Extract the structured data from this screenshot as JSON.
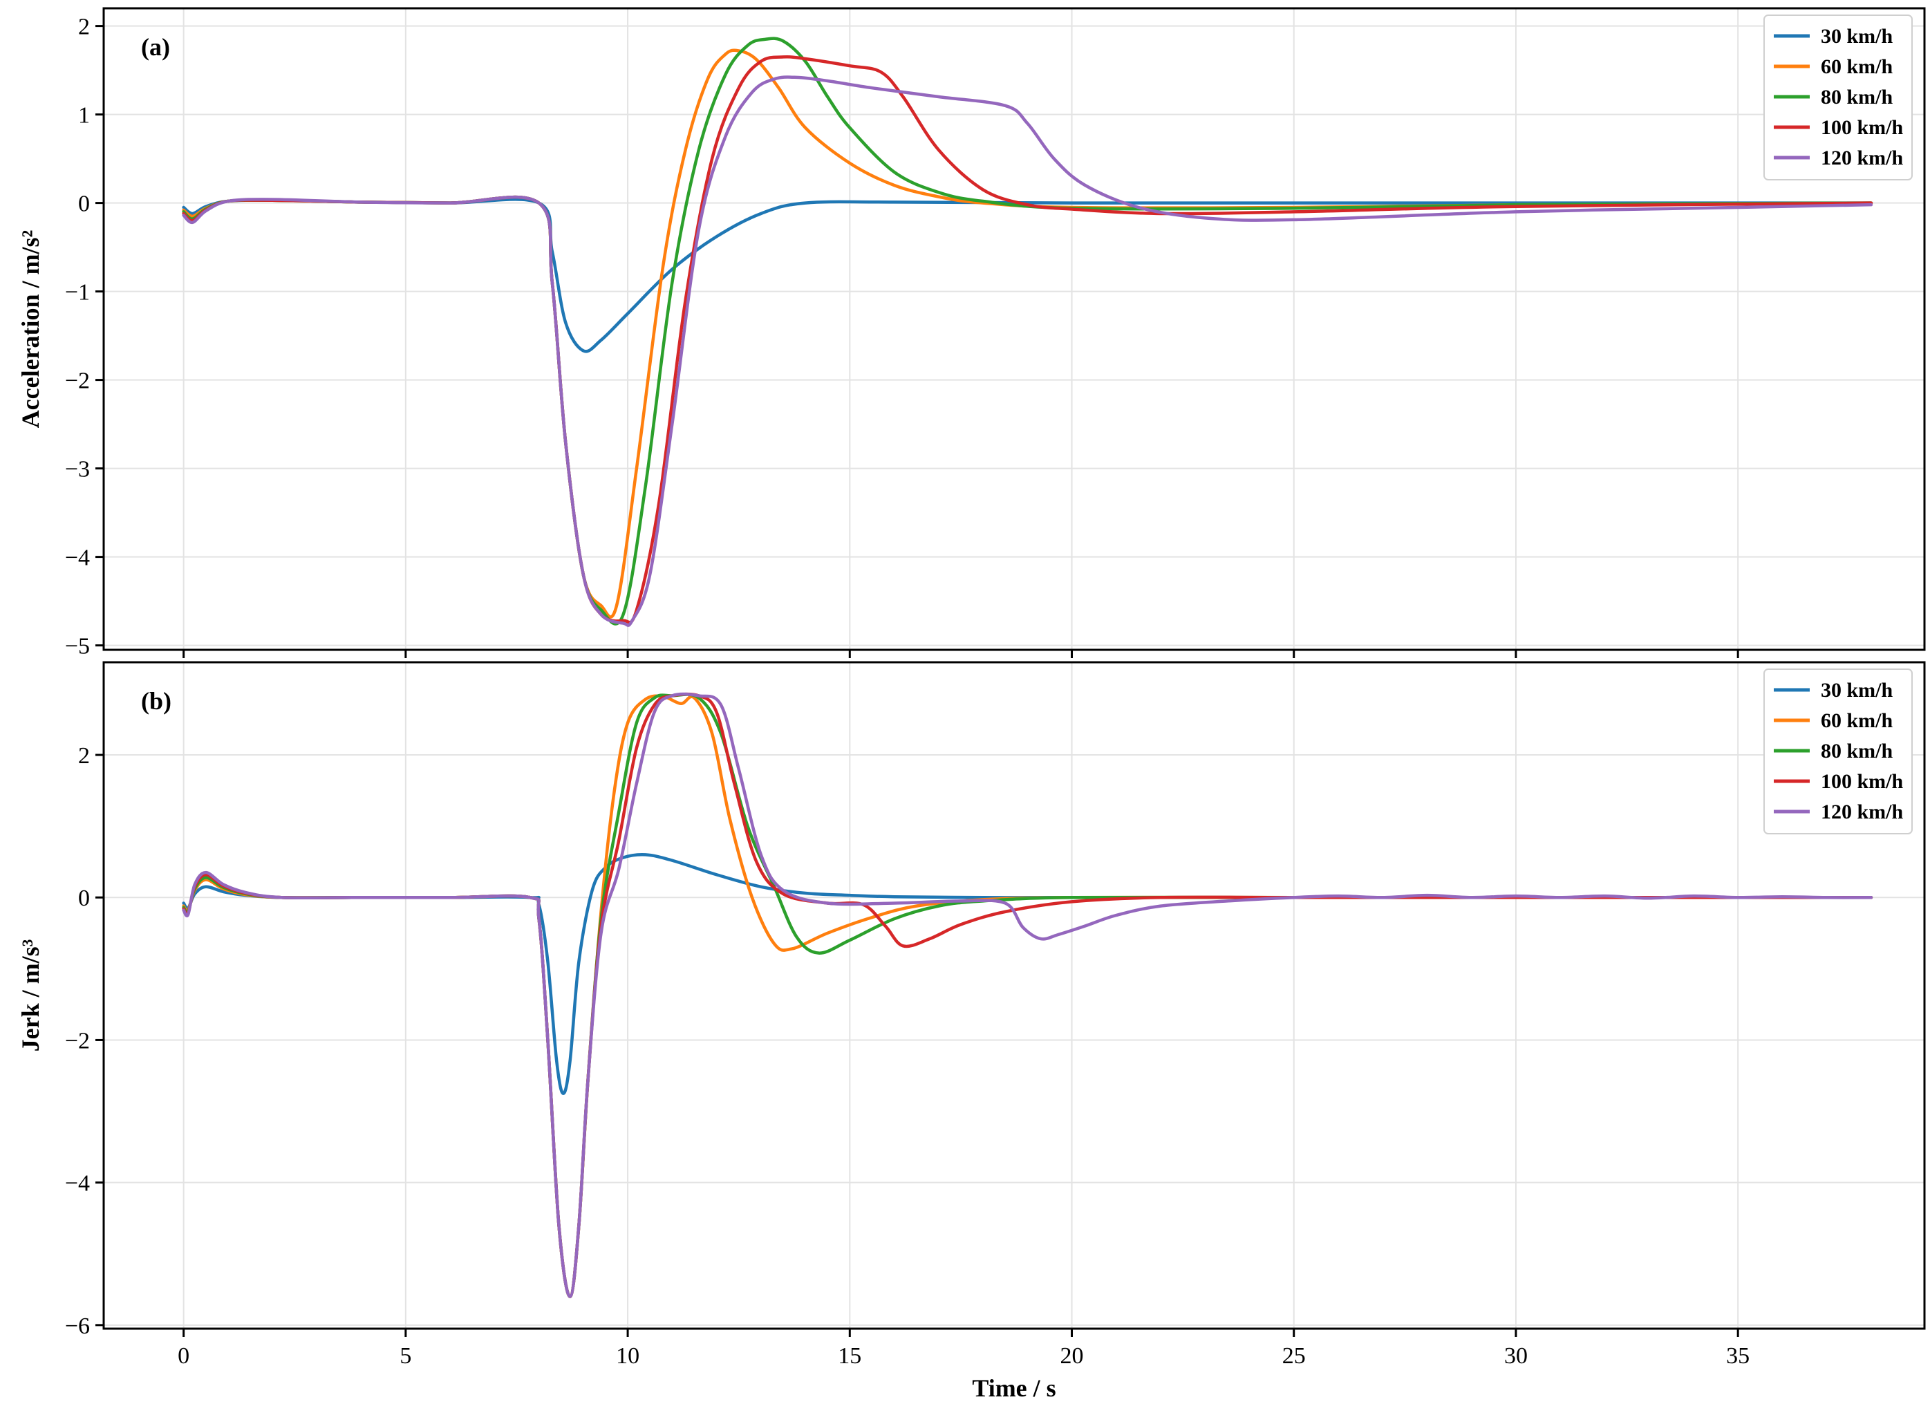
{
  "chart_data": [
    {
      "type": "line",
      "panel_label": "(a)",
      "xlabel": "",
      "ylabel": "Acceleration / m/s²",
      "xlim": [
        -1.8,
        39.2
      ],
      "ylim": [
        -5.05,
        2.2
      ],
      "xticks": [
        0,
        5,
        10,
        15,
        20,
        25,
        30,
        35
      ],
      "yticks": [
        -5,
        -4,
        -3,
        -2,
        -1,
        0,
        1,
        2
      ],
      "xtick_labels": [
        "",
        "",
        "",
        "",
        "",
        "",
        "",
        ""
      ],
      "ytick_labels": [
        "−5",
        "−4",
        "−3",
        "−2",
        "−1",
        "0",
        "1",
        "2"
      ],
      "grid": true,
      "legend_position": "top-right",
      "series": [
        {
          "name": "30 km/h",
          "color": "#1f77b4",
          "x": [
            0,
            0.2,
            0.5,
            1,
            2,
            4,
            6,
            8,
            8.3,
            8.6,
            9,
            9.4,
            10,
            11,
            12,
            13,
            14,
            16,
            20,
            25,
            30,
            38
          ],
          "y": [
            -0.05,
            -0.12,
            -0.04,
            0.02,
            0.03,
            0.01,
            0.0,
            0.0,
            -0.55,
            -1.35,
            -1.67,
            -1.55,
            -1.25,
            -0.75,
            -0.38,
            -0.12,
            0.0,
            0.01,
            0.0,
            0.0,
            0.0,
            0.0
          ]
        },
        {
          "name": "60 km/h",
          "color": "#ff7f0e",
          "x": [
            0,
            0.2,
            0.5,
            1,
            2,
            4,
            6,
            8,
            8.3,
            8.6,
            9,
            9.4,
            9.75,
            10.2,
            10.8,
            11.3,
            11.8,
            12.2,
            12.5,
            12.9,
            13.4,
            14,
            15,
            16,
            17,
            18,
            20,
            25,
            30,
            38
          ],
          "y": [
            -0.08,
            -0.15,
            -0.06,
            0.02,
            0.03,
            0.01,
            0.0,
            0.0,
            -0.9,
            -2.7,
            -4.2,
            -4.55,
            -4.55,
            -3.0,
            -0.7,
            0.6,
            1.4,
            1.68,
            1.72,
            1.62,
            1.3,
            0.85,
            0.45,
            0.2,
            0.07,
            0.0,
            -0.05,
            -0.05,
            -0.02,
            0.0
          ]
        },
        {
          "name": "80 km/h",
          "color": "#2ca02c",
          "x": [
            0,
            0.2,
            0.5,
            1,
            2,
            4,
            6,
            8,
            8.3,
            8.6,
            9,
            9.4,
            9.9,
            10.4,
            11,
            11.6,
            12.2,
            12.7,
            13.1,
            13.5,
            14,
            14.5,
            15,
            16,
            17,
            18,
            20,
            25,
            30,
            38
          ],
          "y": [
            -0.1,
            -0.18,
            -0.07,
            0.02,
            0.03,
            0.01,
            0.0,
            0.0,
            -0.9,
            -2.7,
            -4.2,
            -4.6,
            -4.65,
            -3.2,
            -0.9,
            0.6,
            1.45,
            1.78,
            1.85,
            1.83,
            1.6,
            1.2,
            0.85,
            0.35,
            0.12,
            0.02,
            -0.06,
            -0.06,
            -0.02,
            0.0
          ]
        },
        {
          "name": "100 km/h",
          "color": "#d62728",
          "x": [
            0,
            0.2,
            0.5,
            1,
            2,
            4,
            6,
            8,
            8.3,
            8.6,
            9,
            9.4,
            9.9,
            10.2,
            10.7,
            11.3,
            11.9,
            12.5,
            13,
            13.5,
            14,
            15,
            15.7,
            16.2,
            17,
            18,
            19,
            20,
            22,
            25,
            30,
            38
          ],
          "y": [
            -0.12,
            -0.2,
            -0.08,
            0.02,
            0.03,
            0.01,
            0.0,
            0.0,
            -0.9,
            -2.7,
            -4.2,
            -4.65,
            -4.72,
            -4.6,
            -3.4,
            -1.1,
            0.5,
            1.3,
            1.6,
            1.65,
            1.63,
            1.55,
            1.48,
            1.2,
            0.6,
            0.15,
            -0.02,
            -0.07,
            -0.12,
            -0.1,
            -0.04,
            0.0
          ]
        },
        {
          "name": "120 km/h",
          "color": "#9467bd",
          "x": [
            0,
            0.2,
            0.5,
            1,
            2,
            4,
            6,
            8,
            8.3,
            8.6,
            9,
            9.4,
            9.9,
            10.1,
            10.5,
            11,
            11.6,
            12.2,
            12.8,
            13.3,
            13.8,
            14.5,
            15.5,
            17,
            18.5,
            19,
            19.6,
            20.3,
            21.5,
            23,
            25,
            30,
            35,
            38
          ],
          "y": [
            -0.14,
            -0.22,
            -0.09,
            0.02,
            0.04,
            0.01,
            0.0,
            0.0,
            -0.9,
            -2.7,
            -4.2,
            -4.65,
            -4.75,
            -4.72,
            -4.2,
            -2.5,
            -0.3,
            0.75,
            1.25,
            1.4,
            1.42,
            1.38,
            1.3,
            1.2,
            1.1,
            0.9,
            0.5,
            0.2,
            -0.05,
            -0.17,
            -0.19,
            -0.1,
            -0.05,
            -0.02
          ]
        }
      ]
    },
    {
      "type": "line",
      "panel_label": "(b)",
      "xlabel": "Time / s",
      "ylabel": "Jerk / m/s³",
      "xlim": [
        -1.8,
        39.2
      ],
      "ylim": [
        -6.05,
        3.3
      ],
      "xticks": [
        0,
        5,
        10,
        15,
        20,
        25,
        30,
        35
      ],
      "yticks": [
        -6,
        -4,
        -2,
        0,
        2
      ],
      "xtick_labels": [
        "0",
        "5",
        "10",
        "15",
        "20",
        "25",
        "30",
        "35"
      ],
      "ytick_labels": [
        "−6",
        "−4",
        "−2",
        "0",
        "2"
      ],
      "grid": true,
      "legend_position": "top-right",
      "series": [
        {
          "name": "30 km/h",
          "color": "#1f77b4",
          "x": [
            0,
            0.1,
            0.25,
            0.5,
            0.9,
            1.4,
            2.2,
            4,
            6,
            7.8,
            8.0,
            8.2,
            8.4,
            8.55,
            8.7,
            8.9,
            9.2,
            9.5,
            9.9,
            10.4,
            11,
            12,
            13,
            14,
            15,
            16,
            18,
            20,
            25,
            30,
            38
          ],
          "y": [
            -0.08,
            -0.15,
            0.05,
            0.15,
            0.08,
            0.03,
            0.0,
            0.0,
            0.0,
            0.0,
            -0.1,
            -0.9,
            -2.3,
            -2.75,
            -2.3,
            -0.9,
            0.1,
            0.42,
            0.56,
            0.6,
            0.52,
            0.32,
            0.15,
            0.06,
            0.03,
            0.01,
            0.0,
            0.0,
            0.0,
            0.0,
            0.0
          ]
        },
        {
          "name": "60 km/h",
          "color": "#ff7f0e",
          "x": [
            0,
            0.1,
            0.25,
            0.5,
            0.9,
            1.4,
            2.2,
            4,
            6,
            7.8,
            8.0,
            8.2,
            8.45,
            8.7,
            8.9,
            9.1,
            9.4,
            9.7,
            10,
            10.4,
            10.8,
            11.2,
            11.5,
            11.9,
            12.3,
            12.8,
            13.3,
            13.7,
            14.5,
            15.5,
            16.5,
            18,
            20,
            25,
            30,
            38
          ],
          "y": [
            -0.12,
            -0.18,
            0.1,
            0.25,
            0.12,
            0.04,
            0.0,
            0.0,
            0.0,
            0.0,
            -0.3,
            -2.0,
            -4.6,
            -5.6,
            -4.6,
            -2.6,
            -0.2,
            1.5,
            2.45,
            2.78,
            2.82,
            2.72,
            2.8,
            2.3,
            1.1,
            0.0,
            -0.65,
            -0.72,
            -0.5,
            -0.28,
            -0.12,
            -0.03,
            0.0,
            0.0,
            0.0,
            0.0
          ]
        },
        {
          "name": "80 km/h",
          "color": "#2ca02c",
          "x": [
            0,
            0.1,
            0.25,
            0.5,
            0.9,
            1.4,
            2.2,
            4,
            6,
            7.8,
            8.0,
            8.2,
            8.45,
            8.7,
            8.9,
            9.1,
            9.4,
            9.8,
            10.2,
            10.6,
            11,
            11.6,
            12.1,
            12.7,
            13.3,
            13.8,
            14.3,
            15,
            16,
            17,
            18,
            20,
            25,
            30,
            38
          ],
          "y": [
            -0.14,
            -0.2,
            0.12,
            0.28,
            0.14,
            0.05,
            0.0,
            0.0,
            0.0,
            0.0,
            -0.3,
            -2.0,
            -4.6,
            -5.6,
            -4.6,
            -2.6,
            -0.3,
            1.2,
            2.45,
            2.8,
            2.83,
            2.8,
            2.3,
            1.0,
            0.15,
            -0.55,
            -0.78,
            -0.6,
            -0.3,
            -0.12,
            -0.05,
            0.0,
            0.0,
            0.0,
            0.0
          ]
        },
        {
          "name": "100 km/h",
          "color": "#d62728",
          "x": [
            0,
            0.1,
            0.25,
            0.5,
            0.9,
            1.4,
            2.2,
            4,
            6,
            7.8,
            8.0,
            8.2,
            8.45,
            8.7,
            8.9,
            9.1,
            9.4,
            9.8,
            10.2,
            10.6,
            11,
            11.6,
            12,
            12.4,
            12.9,
            13.5,
            14.5,
            15.3,
            15.8,
            16.2,
            16.8,
            17.5,
            18.5,
            20,
            22,
            25,
            30,
            38
          ],
          "y": [
            -0.16,
            -0.22,
            0.15,
            0.32,
            0.16,
            0.06,
            0.0,
            0.0,
            0.0,
            0.0,
            -0.3,
            -2.0,
            -4.6,
            -5.6,
            -4.6,
            -2.6,
            -0.4,
            0.8,
            2.1,
            2.7,
            2.83,
            2.83,
            2.6,
            1.6,
            0.5,
            0.05,
            -0.08,
            -0.1,
            -0.4,
            -0.68,
            -0.58,
            -0.38,
            -0.2,
            -0.06,
            0.0,
            0.0,
            0.0,
            0.0
          ]
        },
        {
          "name": "120 km/h",
          "color": "#9467bd",
          "x": [
            0,
            0.1,
            0.25,
            0.5,
            0.9,
            1.4,
            2.2,
            4,
            6,
            7.8,
            8.0,
            8.2,
            8.45,
            8.7,
            8.9,
            9.1,
            9.4,
            9.8,
            10.2,
            10.6,
            11,
            11.6,
            12.1,
            12.5,
            13,
            13.5,
            14.5,
            16,
            17.5,
            18.5,
            18.9,
            19.3,
            19.7,
            20.3,
            21,
            22,
            23.5,
            25,
            26,
            27,
            28,
            29,
            30,
            31,
            32,
            33,
            34,
            35,
            36,
            37,
            38
          ],
          "y": [
            -0.18,
            -0.24,
            0.18,
            0.35,
            0.18,
            0.07,
            0.0,
            0.0,
            0.0,
            0.0,
            -0.3,
            -2.0,
            -4.6,
            -5.6,
            -4.6,
            -2.6,
            -0.5,
            0.4,
            1.6,
            2.6,
            2.83,
            2.83,
            2.7,
            1.8,
            0.6,
            0.1,
            -0.08,
            -0.08,
            -0.05,
            -0.08,
            -0.42,
            -0.58,
            -0.52,
            -0.4,
            -0.25,
            -0.12,
            -0.05,
            0.0,
            0.02,
            0.0,
            0.03,
            0.0,
            0.02,
            0.0,
            0.02,
            -0.01,
            0.02,
            0.0,
            0.01,
            0.0,
            0.0
          ]
        }
      ]
    }
  ]
}
